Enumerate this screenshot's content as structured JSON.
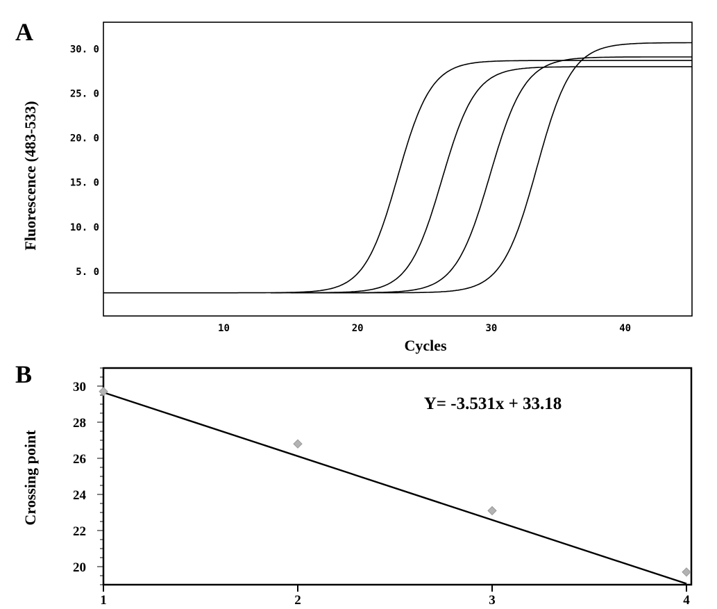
{
  "chart_data": [
    {
      "panel": "A",
      "type": "line",
      "xlabel": "Cycles",
      "ylabel": "Fluorescence (483-533)",
      "xlim": [
        1,
        45
      ],
      "ylim": [
        0,
        33
      ],
      "xticks": [
        10,
        20,
        30,
        40
      ],
      "yticks": [
        5,
        10,
        15,
        20,
        25,
        30
      ],
      "ytick_labels": [
        "5. 0",
        "10. 0",
        "15. 0",
        "20. 0",
        "25. 0",
        "30. 0"
      ],
      "grid": false,
      "model": "sigmoid: baseline + (plateau - baseline) / (1 + exp(-(cycle - midpoint) / slope))",
      "series": [
        {
          "baseline": 2.6,
          "plateau": 28.7,
          "midpoint": 23.0,
          "slope": 1.25,
          "start": 1
        },
        {
          "baseline": 2.6,
          "plateau": 28.0,
          "midpoint": 26.3,
          "slope": 1.25,
          "start": 13.5
        },
        {
          "baseline": 2.6,
          "plateau": 29.1,
          "midpoint": 29.9,
          "slope": 1.3,
          "start": 15
        },
        {
          "baseline": 2.6,
          "plateau": 30.7,
          "midpoint": 33.4,
          "slope": 1.3,
          "start": 17
        }
      ]
    },
    {
      "panel": "B",
      "type": "scatter",
      "xlabel": "",
      "ylabel": "Crossing point",
      "xlim": [
        1,
        4
      ],
      "ylim": [
        19,
        31
      ],
      "xticks": [
        1,
        2,
        3,
        4
      ],
      "yticks": [
        20,
        22,
        24,
        26,
        28,
        30
      ],
      "grid": false,
      "points": {
        "x": [
          1,
          2,
          3,
          4
        ],
        "y": [
          29.7,
          26.8,
          23.1,
          19.7
        ]
      },
      "trendline": {
        "slope": -3.531,
        "intercept": 33.18
      },
      "annotation": "Y= -3.531x + 33.18",
      "marker_color": "#b3b3b3"
    }
  ],
  "labels": {
    "panel_a": "A",
    "panel_b": "B"
  }
}
